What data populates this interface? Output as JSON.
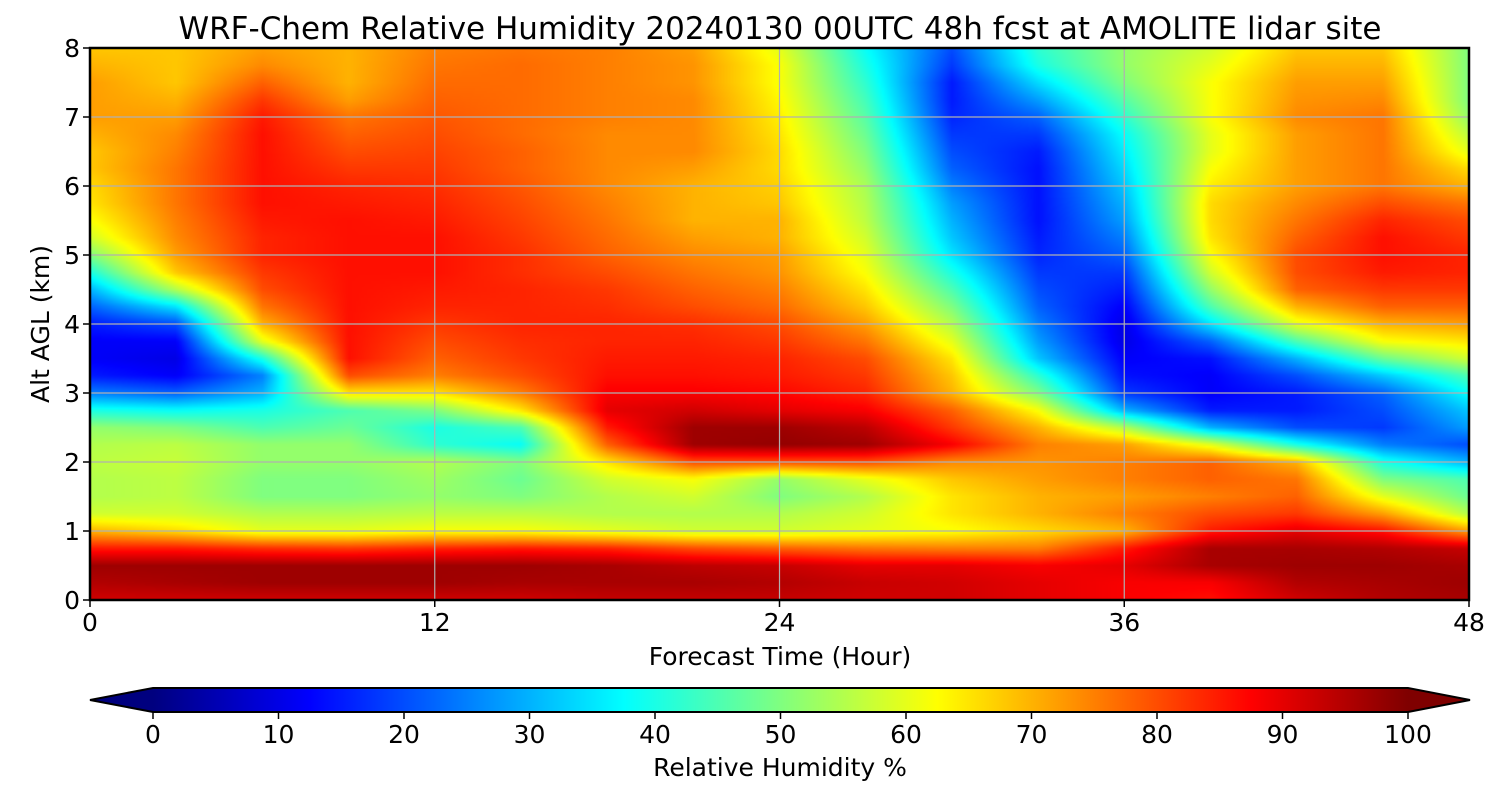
{
  "chart_data": {
    "type": "heatmap",
    "title": "WRF-Chem Relative Humidity 20240130 00UTC 48h fcst at AMOLITE lidar site",
    "xlabel": "Forecast Time (Hour)",
    "ylabel": "Alt AGL (km)",
    "xlim": [
      0,
      48
    ],
    "ylim": [
      0,
      8
    ],
    "xticks": [
      0,
      12,
      24,
      36,
      48
    ],
    "yticks": [
      0,
      1,
      2,
      3,
      4,
      5,
      6,
      7,
      8
    ],
    "grid": true,
    "colormap": "jet",
    "colorbar": {
      "label": "Relative Humidity %",
      "min": 0,
      "max": 100,
      "ticks": [
        0,
        10,
        20,
        30,
        40,
        50,
        60,
        70,
        80,
        90,
        100
      ],
      "extend": "both",
      "orientation": "horizontal"
    },
    "x": [
      0,
      3,
      6,
      9,
      12,
      15,
      18,
      21,
      24,
      27,
      30,
      33,
      36,
      39,
      42,
      45,
      48
    ],
    "y": [
      0,
      0.25,
      0.5,
      0.75,
      1,
      1.25,
      1.5,
      1.75,
      2,
      2.25,
      2.5,
      2.75,
      3,
      3.25,
      3.5,
      3.75,
      4,
      4.25,
      4.5,
      4.75,
      5,
      5.25,
      5.5,
      5.75,
      6,
      6.25,
      6.5,
      6.75,
      7,
      7.25,
      7.5,
      7.75,
      8
    ],
    "values": [
      [
        92,
        92,
        92,
        92,
        92,
        92,
        93,
        93,
        93,
        92,
        92,
        90,
        88,
        86,
        92,
        95,
        96
      ],
      [
        95,
        96,
        97,
        97,
        97,
        96,
        96,
        96,
        95,
        93,
        92,
        90,
        88,
        88,
        95,
        96,
        97
      ],
      [
        97,
        97,
        97,
        97,
        97,
        97,
        96,
        94,
        93,
        90,
        90,
        88,
        90,
        96,
        97,
        97,
        96
      ],
      [
        85,
        85,
        83,
        82,
        84,
        85,
        84,
        80,
        78,
        76,
        75,
        75,
        85,
        96,
        96,
        95,
        93
      ],
      [
        70,
        66,
        60,
        60,
        62,
        62,
        60,
        58,
        58,
        60,
        62,
        66,
        70,
        85,
        90,
        86,
        72
      ],
      [
        58,
        58,
        55,
        55,
        56,
        56,
        55,
        55,
        55,
        58,
        65,
        70,
        75,
        80,
        82,
        72,
        55
      ],
      [
        55,
        56,
        50,
        50,
        52,
        50,
        55,
        58,
        50,
        55,
        65,
        70,
        72,
        75,
        78,
        60,
        48
      ],
      [
        55,
        56,
        50,
        50,
        53,
        48,
        58,
        62,
        52,
        60,
        68,
        72,
        75,
        78,
        76,
        50,
        45
      ],
      [
        56,
        57,
        52,
        52,
        55,
        50,
        65,
        80,
        80,
        80,
        74,
        73,
        75,
        78,
        70,
        40,
        30
      ],
      [
        55,
        56,
        52,
        52,
        42,
        38,
        78,
        97,
        98,
        97,
        88,
        75,
        72,
        60,
        40,
        25,
        20
      ],
      [
        52,
        50,
        45,
        48,
        40,
        45,
        85,
        97,
        97,
        94,
        82,
        70,
        55,
        30,
        20,
        18,
        28
      ],
      [
        40,
        38,
        40,
        45,
        50,
        65,
        90,
        92,
        90,
        88,
        78,
        62,
        30,
        15,
        15,
        20,
        32
      ],
      [
        25,
        22,
        30,
        65,
        65,
        75,
        88,
        88,
        87,
        84,
        70,
        50,
        18,
        12,
        15,
        22,
        38
      ],
      [
        15,
        12,
        25,
        80,
        75,
        80,
        86,
        86,
        85,
        82,
        68,
        42,
        14,
        12,
        20,
        32,
        45
      ],
      [
        12,
        10,
        40,
        86,
        78,
        82,
        85,
        85,
        84,
        80,
        65,
        32,
        12,
        14,
        30,
        48,
        58
      ],
      [
        12,
        12,
        60,
        86,
        80,
        83,
        84,
        84,
        82,
        76,
        60,
        28,
        10,
        22,
        45,
        62,
        65
      ],
      [
        15,
        20,
        70,
        86,
        82,
        84,
        84,
        83,
        80,
        72,
        55,
        25,
        10,
        35,
        60,
        70,
        72
      ],
      [
        22,
        35,
        76,
        86,
        84,
        84,
        83,
        80,
        77,
        68,
        50,
        22,
        12,
        45,
        70,
        78,
        78
      ],
      [
        30,
        55,
        80,
        86,
        85,
        84,
        82,
        78,
        75,
        65,
        45,
        20,
        15,
        52,
        78,
        82,
        82
      ],
      [
        40,
        68,
        82,
        86,
        86,
        83,
        80,
        76,
        73,
        62,
        40,
        18,
        18,
        58,
        80,
        85,
        84
      ],
      [
        50,
        72,
        84,
        86,
        86,
        83,
        78,
        74,
        72,
        60,
        35,
        16,
        22,
        62,
        80,
        86,
        84
      ],
      [
        58,
        74,
        84,
        86,
        86,
        82,
        77,
        72,
        70,
        58,
        32,
        15,
        25,
        65,
        78,
        86,
        82
      ],
      [
        62,
        75,
        85,
        86,
        85,
        81,
        76,
        70,
        70,
        56,
        30,
        14,
        28,
        66,
        76,
        84,
        80
      ],
      [
        65,
        76,
        86,
        85,
        84,
        80,
        75,
        70,
        68,
        55,
        28,
        14,
        30,
        66,
        74,
        80,
        76
      ],
      [
        66,
        76,
        86,
        84,
        83,
        79,
        74,
        70,
        67,
        54,
        25,
        14,
        32,
        64,
        72,
        76,
        70
      ],
      [
        68,
        76,
        86,
        82,
        82,
        78,
        74,
        72,
        66,
        52,
        22,
        14,
        34,
        62,
        72,
        76,
        66
      ],
      [
        68,
        75,
        86,
        80,
        81,
        78,
        74,
        74,
        66,
        50,
        20,
        15,
        36,
        60,
        72,
        76,
        60
      ],
      [
        70,
        74,
        86,
        78,
        80,
        77,
        74,
        74,
        65,
        48,
        18,
        18,
        38,
        60,
        72,
        76,
        56
      ],
      [
        72,
        72,
        85,
        76,
        79,
        77,
        75,
        74,
        64,
        46,
        16,
        22,
        42,
        62,
        74,
        76,
        52
      ],
      [
        72,
        70,
        82,
        72,
        78,
        77,
        75,
        74,
        63,
        44,
        15,
        28,
        46,
        62,
        73,
        74,
        50
      ],
      [
        72,
        68,
        78,
        70,
        77,
        77,
        75,
        73,
        62,
        42,
        15,
        34,
        50,
        62,
        72,
        72,
        50
      ],
      [
        70,
        68,
        74,
        70,
        76,
        77,
        75,
        73,
        62,
        40,
        18,
        40,
        52,
        60,
        70,
        70,
        50
      ],
      [
        68,
        68,
        72,
        70,
        75,
        76,
        75,
        72,
        60,
        38,
        20,
        42,
        52,
        58,
        68,
        68,
        50
      ]
    ]
  }
}
